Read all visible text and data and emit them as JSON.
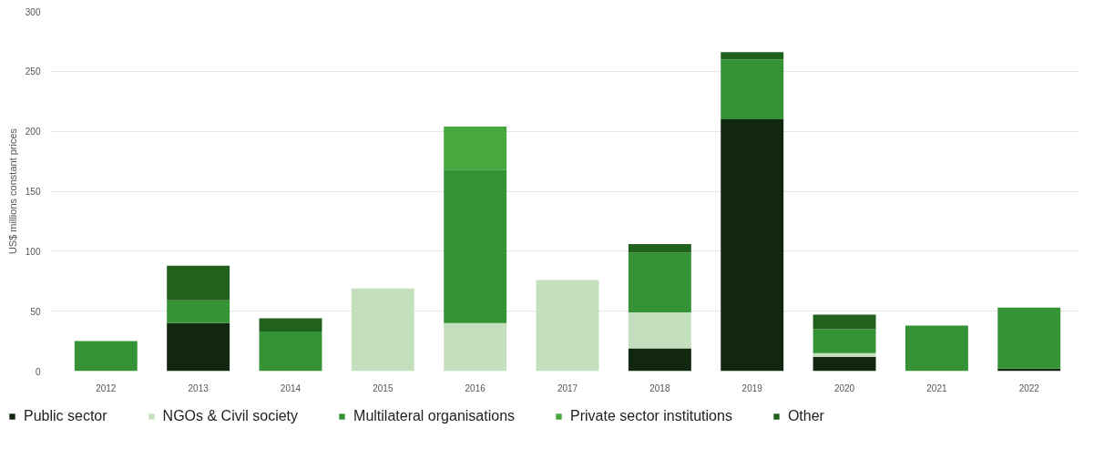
{
  "chart_data": {
    "type": "bar",
    "stacked": true,
    "ylabel": "US$ millions constant prices",
    "categories": [
      "2012",
      "2013",
      "2014",
      "2015",
      "2016",
      "2017",
      "2018",
      "2019",
      "2020",
      "2021",
      "2022"
    ],
    "series": [
      {
        "name": "Public sector",
        "color": "#11270f",
        "values": [
          0,
          40,
          0,
          0,
          0,
          0,
          19,
          210,
          12,
          0,
          2
        ]
      },
      {
        "name": "NGOs & Civil society",
        "color": "#c4dfbd",
        "values": [
          0,
          0,
          0,
          69,
          40,
          76,
          30,
          0,
          3,
          0,
          0
        ]
      },
      {
        "name": "Multilateral organisations",
        "color": "#359335",
        "values": [
          25,
          19,
          33,
          0,
          128,
          0,
          50,
          50,
          20,
          38,
          51
        ]
      },
      {
        "name": "Private sector institutions",
        "color": "#47a83f",
        "values": [
          0,
          0,
          0,
          0,
          36,
          0,
          0,
          0,
          0,
          0,
          0
        ]
      },
      {
        "name": "Other",
        "color": "#20611e",
        "values": [
          0,
          29,
          11,
          0,
          0,
          0,
          7,
          6,
          12,
          0,
          0
        ]
      }
    ],
    "ylim": [
      0,
      300
    ],
    "yticks": [
      0,
      50,
      100,
      150,
      200,
      250,
      300
    ],
    "grid": "y",
    "legend": "bottom"
  }
}
